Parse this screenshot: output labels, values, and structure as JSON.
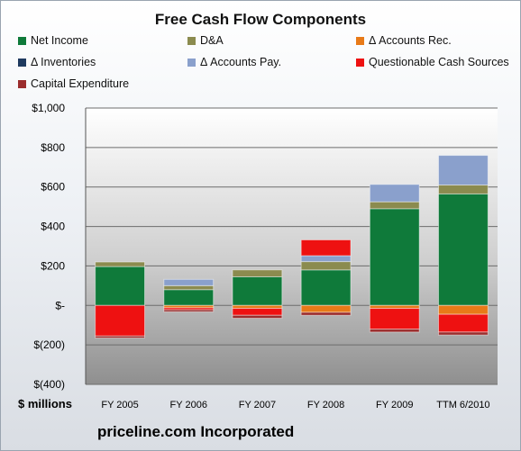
{
  "chart_data": {
    "type": "bar",
    "stacked": true,
    "title": "Free Cash Flow Components",
    "footer": "priceline.com Incorporated",
    "units_label": "$ millions",
    "categories": [
      "FY 2005",
      "FY 2006",
      "FY 2007",
      "FY 2008",
      "FY 2009",
      "TTM 6/2010"
    ],
    "y_ticks": [
      {
        "value": 1000,
        "label": "$1,000"
      },
      {
        "value": 800,
        "label": "$800"
      },
      {
        "value": 600,
        "label": "$600"
      },
      {
        "value": 400,
        "label": "$400"
      },
      {
        "value": 200,
        "label": "$200"
      },
      {
        "value": 0,
        "label": "$-"
      },
      {
        "value": -200,
        "label": "$(200)"
      },
      {
        "value": -400,
        "label": "$(400)"
      }
    ],
    "ylim": [
      -400,
      1000
    ],
    "grid": true,
    "legend_position": "top",
    "series": [
      {
        "name": "Net Income",
        "color": "#0f7a3a",
        "values": [
          197,
          80,
          145,
          180,
          490,
          565
        ]
      },
      {
        "name": "D&A",
        "color": "#8b8b4f",
        "values": [
          23,
          20,
          35,
          42,
          35,
          45
        ]
      },
      {
        "name": "Δ Accounts Rec.",
        "color": "#e87a18",
        "values": [
          0,
          -12,
          -15,
          -35,
          -15,
          -45
        ]
      },
      {
        "name": "Δ Inventories",
        "color": "#1f3a5f",
        "values": [
          0,
          0,
          0,
          0,
          0,
          0
        ]
      },
      {
        "name": "Δ Accounts Pay.",
        "color": "#8aa0cc",
        "values": [
          0,
          32,
          0,
          30,
          88,
          150
        ]
      },
      {
        "name": "Questionable Cash Sources",
        "color": "#ee1111",
        "values": [
          -155,
          -10,
          -35,
          80,
          -105,
          -90
        ]
      },
      {
        "name": "Capital Expenditure",
        "color": "#9b2d2d",
        "values": [
          -10,
          -10,
          -15,
          -15,
          -15,
          -15
        ]
      }
    ]
  }
}
